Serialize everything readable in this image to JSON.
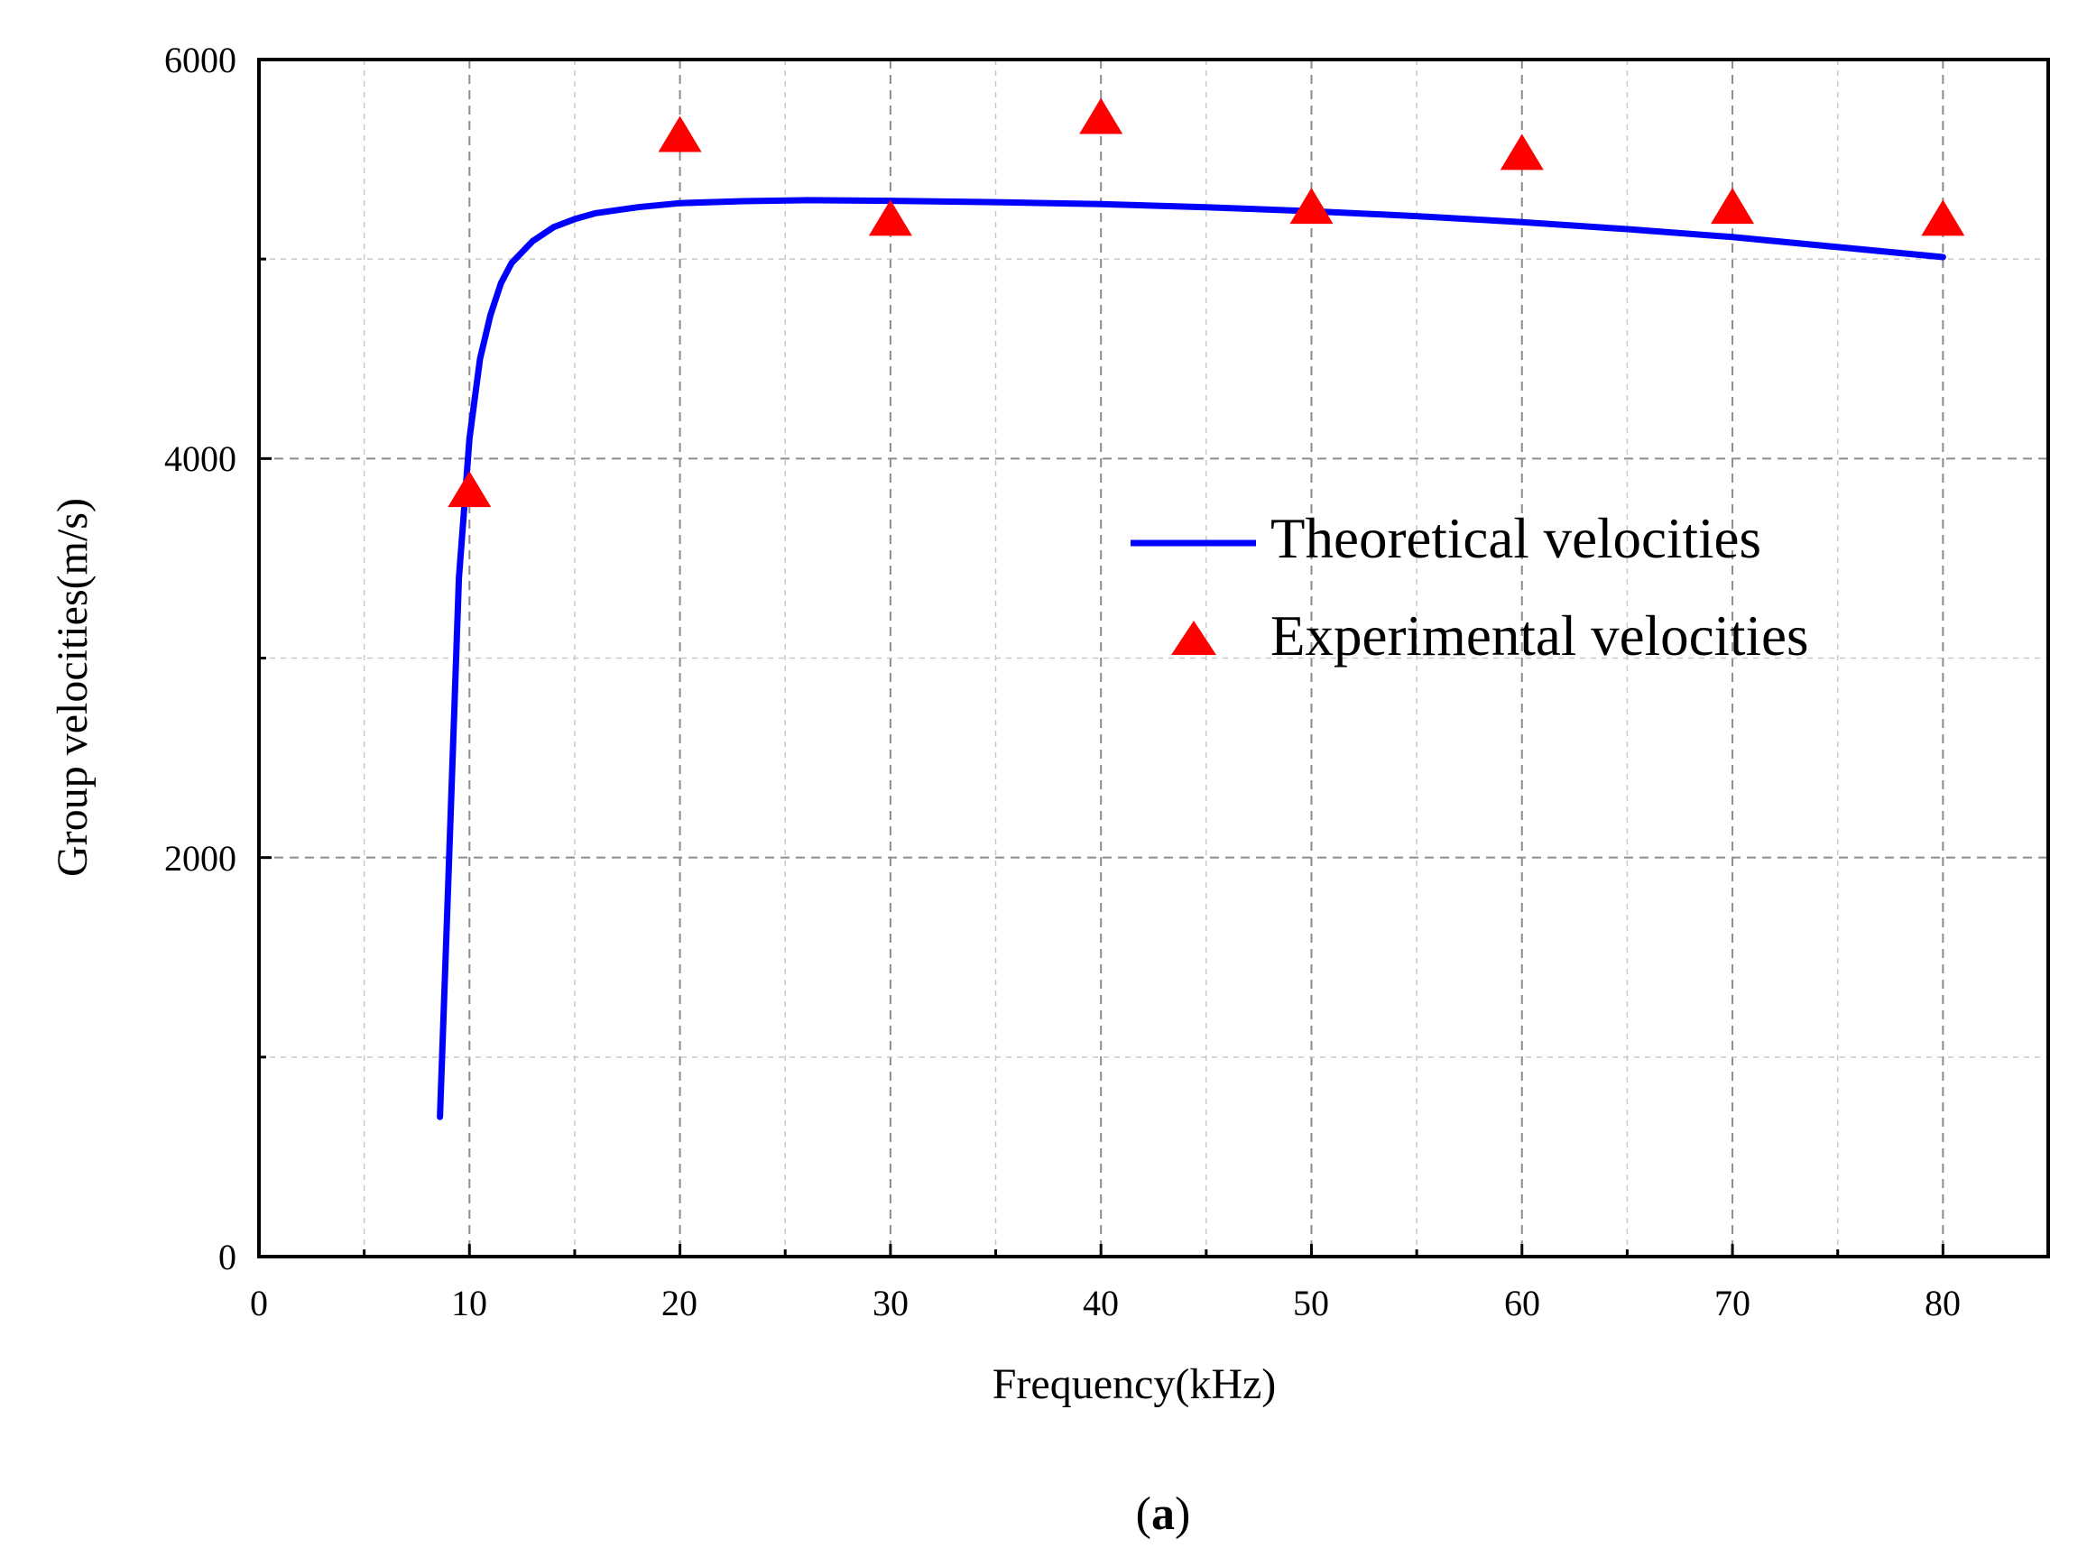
{
  "chart_data": {
    "type": "line",
    "xlabel": "Frequency(kHz)",
    "ylabel": "Group velocities(m/s)",
    "xlim": [
      0,
      85
    ],
    "ylim": [
      0,
      6000
    ],
    "x_ticks": [
      "0",
      "10",
      "20",
      "30",
      "40",
      "50",
      "60",
      "70",
      "80"
    ],
    "y_ticks": [
      "0",
      "2000",
      "4000",
      "6000"
    ],
    "grid": true,
    "legend_position": "right-center",
    "series": [
      {
        "name": "Theoretical velocities",
        "kind": "line",
        "color": "#0000ff",
        "x": [
          8.6,
          9.0,
          9.5,
          10.0,
          10.5,
          11.0,
          11.5,
          12.0,
          13.0,
          14.0,
          15.0,
          16.0,
          18.0,
          20.0,
          23.0,
          26.0,
          30.0,
          35.0,
          40.0,
          45.0,
          50.0,
          55.0,
          60.0,
          65.0,
          70.0,
          75.0,
          80.0
        ],
        "y": [
          700,
          1900,
          3400,
          4100,
          4500,
          4720,
          4880,
          4980,
          5090,
          5160,
          5200,
          5230,
          5260,
          5280,
          5290,
          5295,
          5292,
          5285,
          5275,
          5260,
          5240,
          5215,
          5185,
          5150,
          5110,
          5060,
          5010
        ]
      },
      {
        "name": "Experimental velocities",
        "kind": "scatter",
        "marker": "triangle",
        "color": "#ff0000",
        "x": [
          10,
          20,
          30,
          40,
          50,
          60,
          70,
          80
        ],
        "y": [
          3820,
          5600,
          5180,
          5690,
          5240,
          5510,
          5240,
          5180
        ]
      }
    ]
  },
  "caption": {
    "open": "(",
    "letter": "a",
    "close": ")"
  }
}
